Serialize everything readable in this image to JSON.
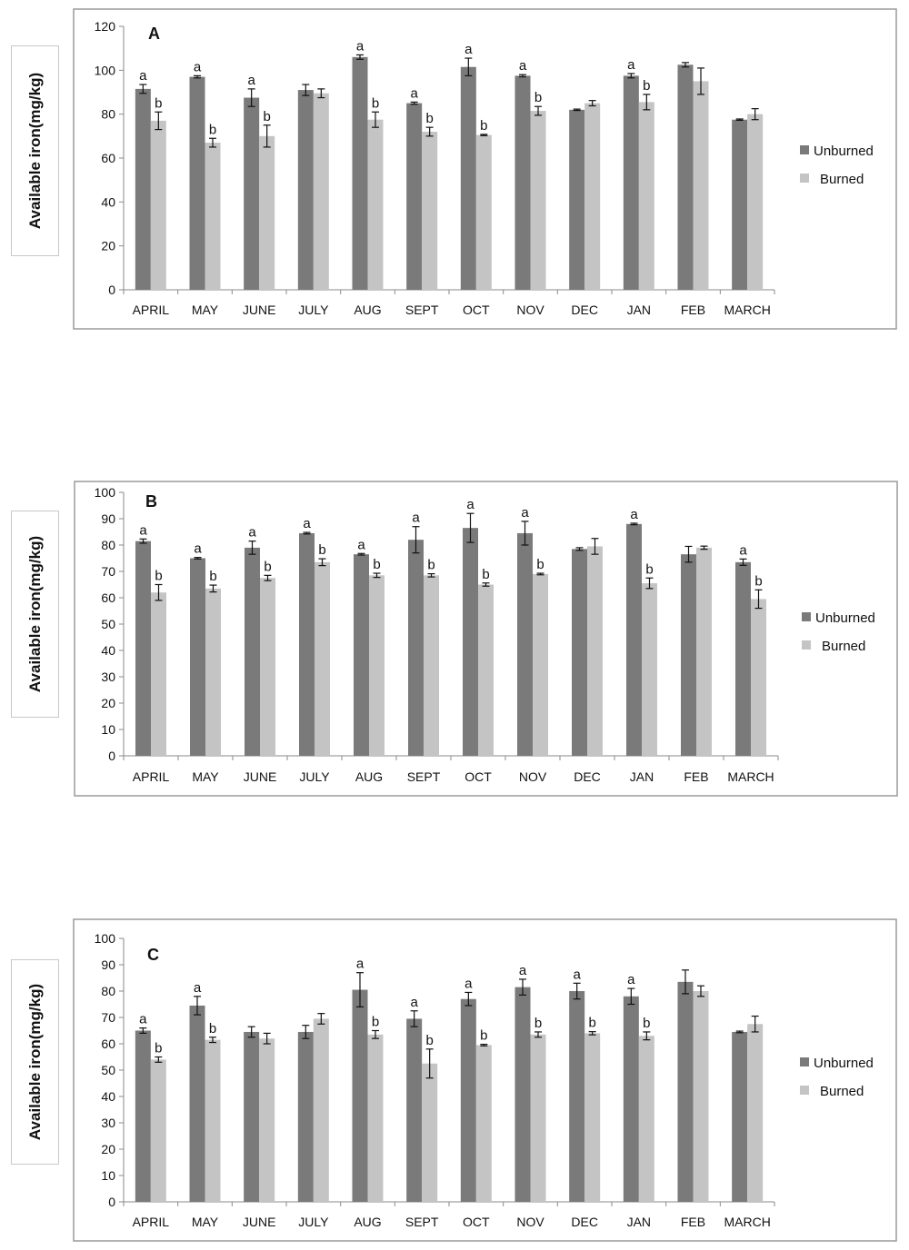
{
  "colors": {
    "unburned": "#7a7a7a",
    "burned": "#c4c4c4",
    "frame": "#9a9a9a",
    "axis": "#8a8a8a"
  },
  "chart_data": [
    {
      "type": "bar",
      "title": "A",
      "ylabel": "Available iron(mg/kg)",
      "ylim": [
        0,
        120
      ],
      "yticks": [
        0,
        20,
        40,
        60,
        80,
        100,
        120
      ],
      "categories": [
        "APRIL",
        "MAY",
        "JUNE",
        "JULY",
        "AUG",
        "SEPT",
        "OCT",
        "NOV",
        "DEC",
        "JAN",
        "FEB",
        "MARCH"
      ],
      "legend_position": "right",
      "series": [
        {
          "name": "Unburned",
          "values": [
            91.5,
            97,
            87.5,
            91,
            106,
            85,
            101.5,
            97.5,
            82,
            97.5,
            102.5,
            77.5
          ],
          "errors": [
            2,
            0.5,
            4,
            2.5,
            1,
            0.5,
            4,
            0.5,
            0.3,
            1,
            1,
            0.3
          ],
          "labels": [
            "a",
            "a",
            "a",
            "",
            "a",
            "a",
            "a",
            "a",
            "",
            "a",
            "",
            ""
          ]
        },
        {
          "name": "Burned",
          "values": [
            77,
            67,
            70,
            89.5,
            77.5,
            72,
            70.5,
            81.5,
            85,
            85.5,
            95,
            80
          ],
          "errors": [
            4,
            2,
            5,
            2,
            3.5,
            2,
            0.3,
            2,
            1.2,
            3.5,
            6,
            2.5
          ],
          "labels": [
            "b",
            "b",
            "b",
            "",
            "b",
            "b",
            "b",
            "b",
            "",
            "b",
            "",
            ""
          ]
        }
      ]
    },
    {
      "type": "bar",
      "title": "B",
      "ylabel": "Available iron(mg/kg)",
      "ylim": [
        0,
        100
      ],
      "yticks": [
        0,
        10,
        20,
        30,
        40,
        50,
        60,
        70,
        80,
        90,
        100
      ],
      "categories": [
        "APRIL",
        "MAY",
        "JUNE",
        "JULY",
        "AUG",
        "SEPT",
        "OCT",
        "NOV",
        "DEC",
        "JAN",
        "FEB",
        "MARCH"
      ],
      "legend_position": "right",
      "series": [
        {
          "name": "Unburned",
          "values": [
            81.5,
            75,
            79,
            84.5,
            76.5,
            82,
            86.5,
            84.5,
            78.5,
            88,
            76.5,
            73.5
          ],
          "errors": [
            0.8,
            0.3,
            2.5,
            0.3,
            0.3,
            5,
            5.5,
            4.5,
            0.5,
            0.3,
            3,
            1.2
          ],
          "labels": [
            "a",
            "a",
            "a",
            "a",
            "a",
            "a",
            "a",
            "a",
            "",
            "a",
            "",
            "a"
          ]
        },
        {
          "name": "Burned",
          "values": [
            62,
            63.5,
            67.5,
            73.5,
            68.5,
            68.5,
            65,
            69,
            79.5,
            65.5,
            79,
            59.5
          ],
          "errors": [
            3,
            1.3,
            1,
            1.3,
            0.8,
            0.6,
            0.6,
            0.3,
            3,
            2,
            0.6,
            3.5
          ],
          "labels": [
            "b",
            "b",
            "b",
            "b",
            "b",
            "b",
            "b",
            "b",
            "",
            "b",
            "",
            "b"
          ]
        }
      ]
    },
    {
      "type": "bar",
      "title": "C",
      "ylabel": "Available iron(mg/kg)",
      "ylim": [
        0,
        100
      ],
      "yticks": [
        0,
        10,
        20,
        30,
        40,
        50,
        60,
        70,
        80,
        90,
        100
      ],
      "categories": [
        "APRIL",
        "MAY",
        "JUNE",
        "JULY",
        "AUG",
        "SEPT",
        "OCT",
        "NOV",
        "DEC",
        "JAN",
        "FEB",
        "MARCH"
      ],
      "legend_position": "right",
      "series": [
        {
          "name": "Unburned",
          "values": [
            65,
            74.5,
            64.5,
            64.5,
            80.5,
            69.5,
            77,
            81.5,
            80,
            78,
            83.5,
            64.5
          ],
          "errors": [
            1,
            3.5,
            2,
            2.5,
            6.5,
            3,
            2.5,
            3,
            3,
            3,
            4.5,
            0.3
          ],
          "labels": [
            "a",
            "a",
            "",
            "",
            "a",
            "a",
            "a",
            "a",
            "a",
            "a",
            "",
            ""
          ]
        },
        {
          "name": "Burned",
          "values": [
            54,
            61.5,
            62,
            69.5,
            63.5,
            52.5,
            59.5,
            63.5,
            64,
            63,
            80,
            67.5
          ],
          "errors": [
            1,
            1,
            2,
            2,
            1.5,
            5.5,
            0.3,
            1,
            0.6,
            1.5,
            2,
            3
          ],
          "labels": [
            "b",
            "b",
            "",
            "",
            "b",
            "b",
            "b",
            "b",
            "b",
            "b",
            "",
            ""
          ]
        }
      ]
    }
  ]
}
